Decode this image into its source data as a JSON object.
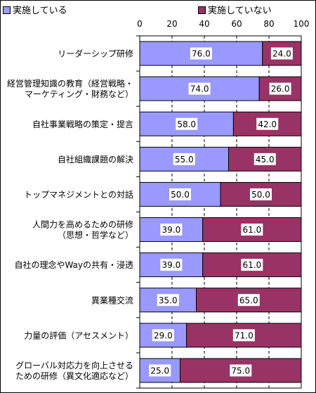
{
  "chart_data": {
    "type": "bar",
    "orientation": "horizontal",
    "stacked": true,
    "legend_position": "top",
    "grid": "vertical-dashed",
    "xlim": [
      0,
      100
    ],
    "xticks": [
      0,
      20,
      40,
      60,
      80,
      100
    ],
    "categories": [
      [
        "リーダーシップ研修"
      ],
      [
        "経営管理知識の教育（経営戦略・",
        "マーケティング・財務など）"
      ],
      [
        "自社事業戦略の策定・提言"
      ],
      [
        "自社組織課題の解決"
      ],
      [
        "トップマネジメントとの対話"
      ],
      [
        "人間力を高めるための研修",
        "（思想・哲学など）"
      ],
      [
        "自社の理念やWayの共有・浸透"
      ],
      [
        "異業種交流"
      ],
      [
        "力量の評価（アセスメント）"
      ],
      [
        "グローバル対応力を向上させる",
        "ための研修（異文化適応など）"
      ]
    ],
    "series": [
      {
        "name": "実施している",
        "color": "#9999ff",
        "values": [
          76.0,
          74.0,
          58.0,
          55.0,
          50.0,
          39.0,
          39.0,
          35.0,
          29.0,
          25.0
        ],
        "labels": [
          "76.0",
          "74.0",
          "58.0",
          "55.0",
          "50.0",
          "39.0",
          "39.0",
          "35.0",
          "29.0",
          "25.0"
        ]
      },
      {
        "name": "実施していない",
        "color": "#993366",
        "values": [
          24.0,
          26.0,
          42.0,
          45.0,
          50.0,
          61.0,
          61.0,
          65.0,
          71.0,
          75.0
        ],
        "labels": [
          "24.0",
          "26.0",
          "42.0",
          "45.0",
          "50.0",
          "61.0",
          "61.0",
          "65.0",
          "71.0",
          "75.0"
        ]
      }
    ]
  }
}
